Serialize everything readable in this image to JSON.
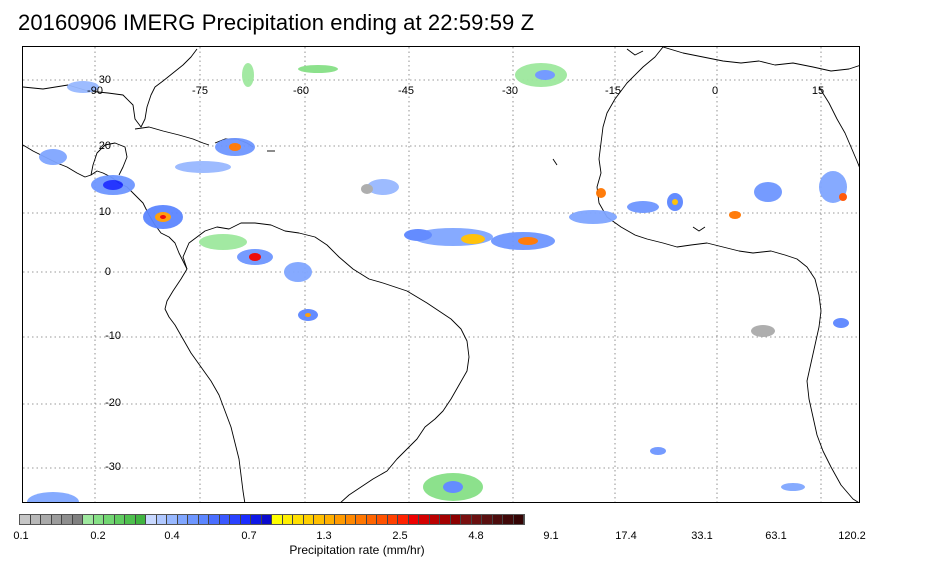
{
  "title": "20160906 IMERG Precipitation ending at 22:59:59 Z",
  "map": {
    "lon_labels": [
      "-90",
      "-75",
      "-60",
      "-45",
      "-30",
      "-15",
      "0",
      "15"
    ],
    "lat_labels": [
      "30",
      "20",
      "10",
      "0",
      "-10",
      "-20",
      "-30"
    ],
    "grid": "dotted",
    "coastline_color": "#000000"
  },
  "colorbar": {
    "title": "Precipitation rate (mm/hr)",
    "tick_labels": [
      "0.1",
      "0.2",
      "0.4",
      "0.7",
      "1.3",
      "2.5",
      "4.8",
      "9.1",
      "17.4",
      "33.1",
      "63.1",
      "120.2"
    ],
    "colors": [
      "#c6c6c6",
      "#b8b8b8",
      "#aaaaaa",
      "#9c9c9c",
      "#8e8e8e",
      "#808080",
      "#9ee89e",
      "#86e086",
      "#72d672",
      "#60cc60",
      "#4ec04e",
      "#40b440",
      "#c8d8ff",
      "#b0c8ff",
      "#98b8ff",
      "#80a6ff",
      "#6e96ff",
      "#5c86ff",
      "#4a6eff",
      "#3a58ff",
      "#2a42ff",
      "#1a2cff",
      "#0e18e6",
      "#0a0acc",
      "#ffff00",
      "#ffef00",
      "#ffdf00",
      "#ffcf00",
      "#ffbf00",
      "#ffaf00",
      "#ff9a00",
      "#ff8800",
      "#ff7600",
      "#ff6400",
      "#ff5200",
      "#ff4000",
      "#ff2200",
      "#ee0000",
      "#d40000",
      "#bb0000",
      "#a40000",
      "#8c0000",
      "#7a1010",
      "#6a1010",
      "#5a1010",
      "#4c0c0c",
      "#400808",
      "#340404"
    ]
  }
}
